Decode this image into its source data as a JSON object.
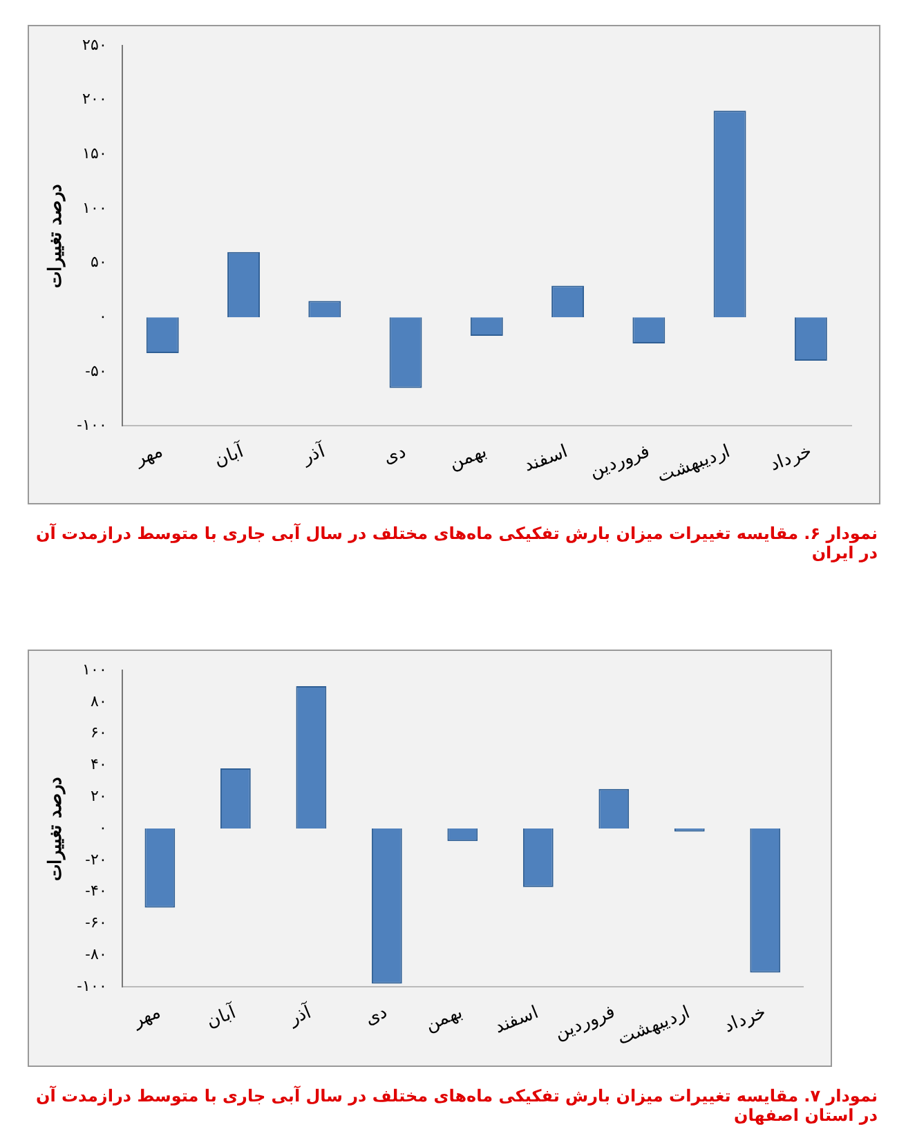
{
  "chart_data": [
    {
      "type": "bar",
      "title": "نمودار ۶. مقایسه تغییرات میزان بارش تفکیکی ماه‌های مختلف در سال آبی جاری با متوسط درازمدت آن در ایران",
      "ylabel": "درصد تغییرات",
      "categories": [
        "مهر",
        "آبان",
        "آذر",
        "دی",
        "بهمن",
        "اسفند",
        "فروردین",
        "اردیبهشت",
        "خرداد"
      ],
      "values": [
        -33,
        60,
        15,
        -65,
        -17,
        29,
        -24,
        190,
        -40
      ],
      "color": "#4f81bd",
      "ylim": [
        -100,
        250
      ],
      "yticks": [
        {
          "value": -100,
          "label": "-۱۰۰"
        },
        {
          "value": -50,
          "label": "-۵۰"
        },
        {
          "value": 0,
          "label": "۰"
        },
        {
          "value": 50,
          "label": "۵۰"
        },
        {
          "value": 100,
          "label": "۱۰۰"
        },
        {
          "value": 150,
          "label": "۱۵۰"
        },
        {
          "value": 200,
          "label": "۲۰۰"
        },
        {
          "value": 250,
          "label": "۲۵۰"
        }
      ],
      "grid": false
    },
    {
      "type": "bar",
      "title": "نمودار ۷. مقایسه تغییرات میزان بارش تفکیکی ماه‌های مختلف در سال آبی جاری با متوسط درازمدت آن در استان اصفهان",
      "ylabel": "درصد تغییرات",
      "categories": [
        "مهر",
        "آبان",
        "آذر",
        "دی",
        "بهمن",
        "اسفند",
        "فروردین",
        "اردیبهشت",
        "خرداد"
      ],
      "values": [
        -50,
        38,
        90,
        -98,
        -8,
        -37,
        25,
        -2,
        -91
      ],
      "color": "#4f81bd",
      "ylim": [
        -100,
        100
      ],
      "yticks": [
        {
          "value": -100,
          "label": "-۱۰۰"
        },
        {
          "value": -80,
          "label": "-۸۰"
        },
        {
          "value": -60,
          "label": "-۶۰"
        },
        {
          "value": -40,
          "label": "-۴۰"
        },
        {
          "value": -20,
          "label": "-۲۰"
        },
        {
          "value": 0,
          "label": "۰"
        },
        {
          "value": 20,
          "label": "۲۰"
        },
        {
          "value": 40,
          "label": "۴۰"
        },
        {
          "value": 60,
          "label": "۶۰"
        },
        {
          "value": 80,
          "label": "۸۰"
        },
        {
          "value": 100,
          "label": "۱۰۰"
        }
      ],
      "grid": false
    }
  ]
}
